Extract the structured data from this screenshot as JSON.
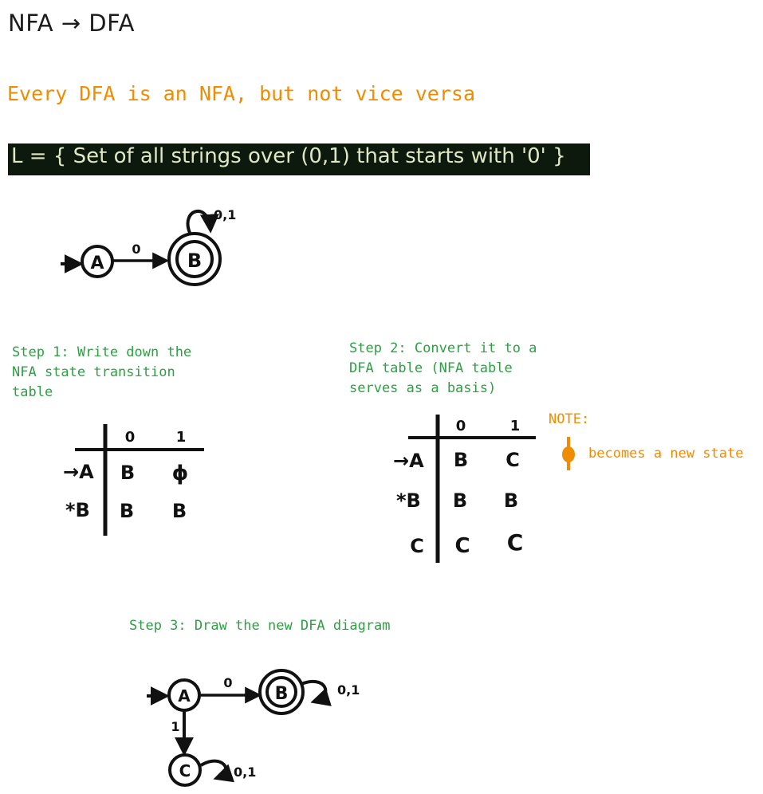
{
  "title": "NFA → DFA",
  "subtitle": "Every DFA is an NFA, but not vice versa",
  "language": "L = { Set of all strings over (0,1) that starts with '0' }",
  "nfa_diagram": {
    "states": [
      "A",
      "B"
    ],
    "edge_label": "0",
    "self_loop_label": "0,1"
  },
  "step1": "Step 1: Write down the\nNFA state transition\ntable",
  "step2": "Step 2: Convert it to a\nDFA table (NFA table\nserves as a basis)",
  "step3": "Step 3: Draw the new DFA diagram",
  "nfa_table": {
    "headers": [
      "0",
      "1"
    ],
    "rows": [
      {
        "state": "→A",
        "on0": "B",
        "on1": "ɸ"
      },
      {
        "state": "*B",
        "on0": "B",
        "on1": "B"
      }
    ]
  },
  "dfa_table": {
    "headers": [
      "0",
      "1"
    ],
    "rows": [
      {
        "state": "→A",
        "on0": "B",
        "on1": "C"
      },
      {
        "state": "*B",
        "on0": "B",
        "on1": "B"
      },
      {
        "state": "C",
        "on0": "C",
        "on1": "C"
      }
    ]
  },
  "note": {
    "label": "NOTE:",
    "symbol": "ɸ",
    "text": "becomes a new state"
  },
  "dfa_diagram": {
    "states": [
      "A",
      "B",
      "C"
    ],
    "a_to_b_label": "0",
    "a_to_c_label": "1",
    "b_loop_label": "0,1",
    "c_loop_label": "0,1"
  },
  "colors": {
    "green": "#2f9e44",
    "orange": "#f08c00",
    "ink": "#111111",
    "banner_bg": "#0c190c",
    "banner_text": "#dfe7c6"
  }
}
